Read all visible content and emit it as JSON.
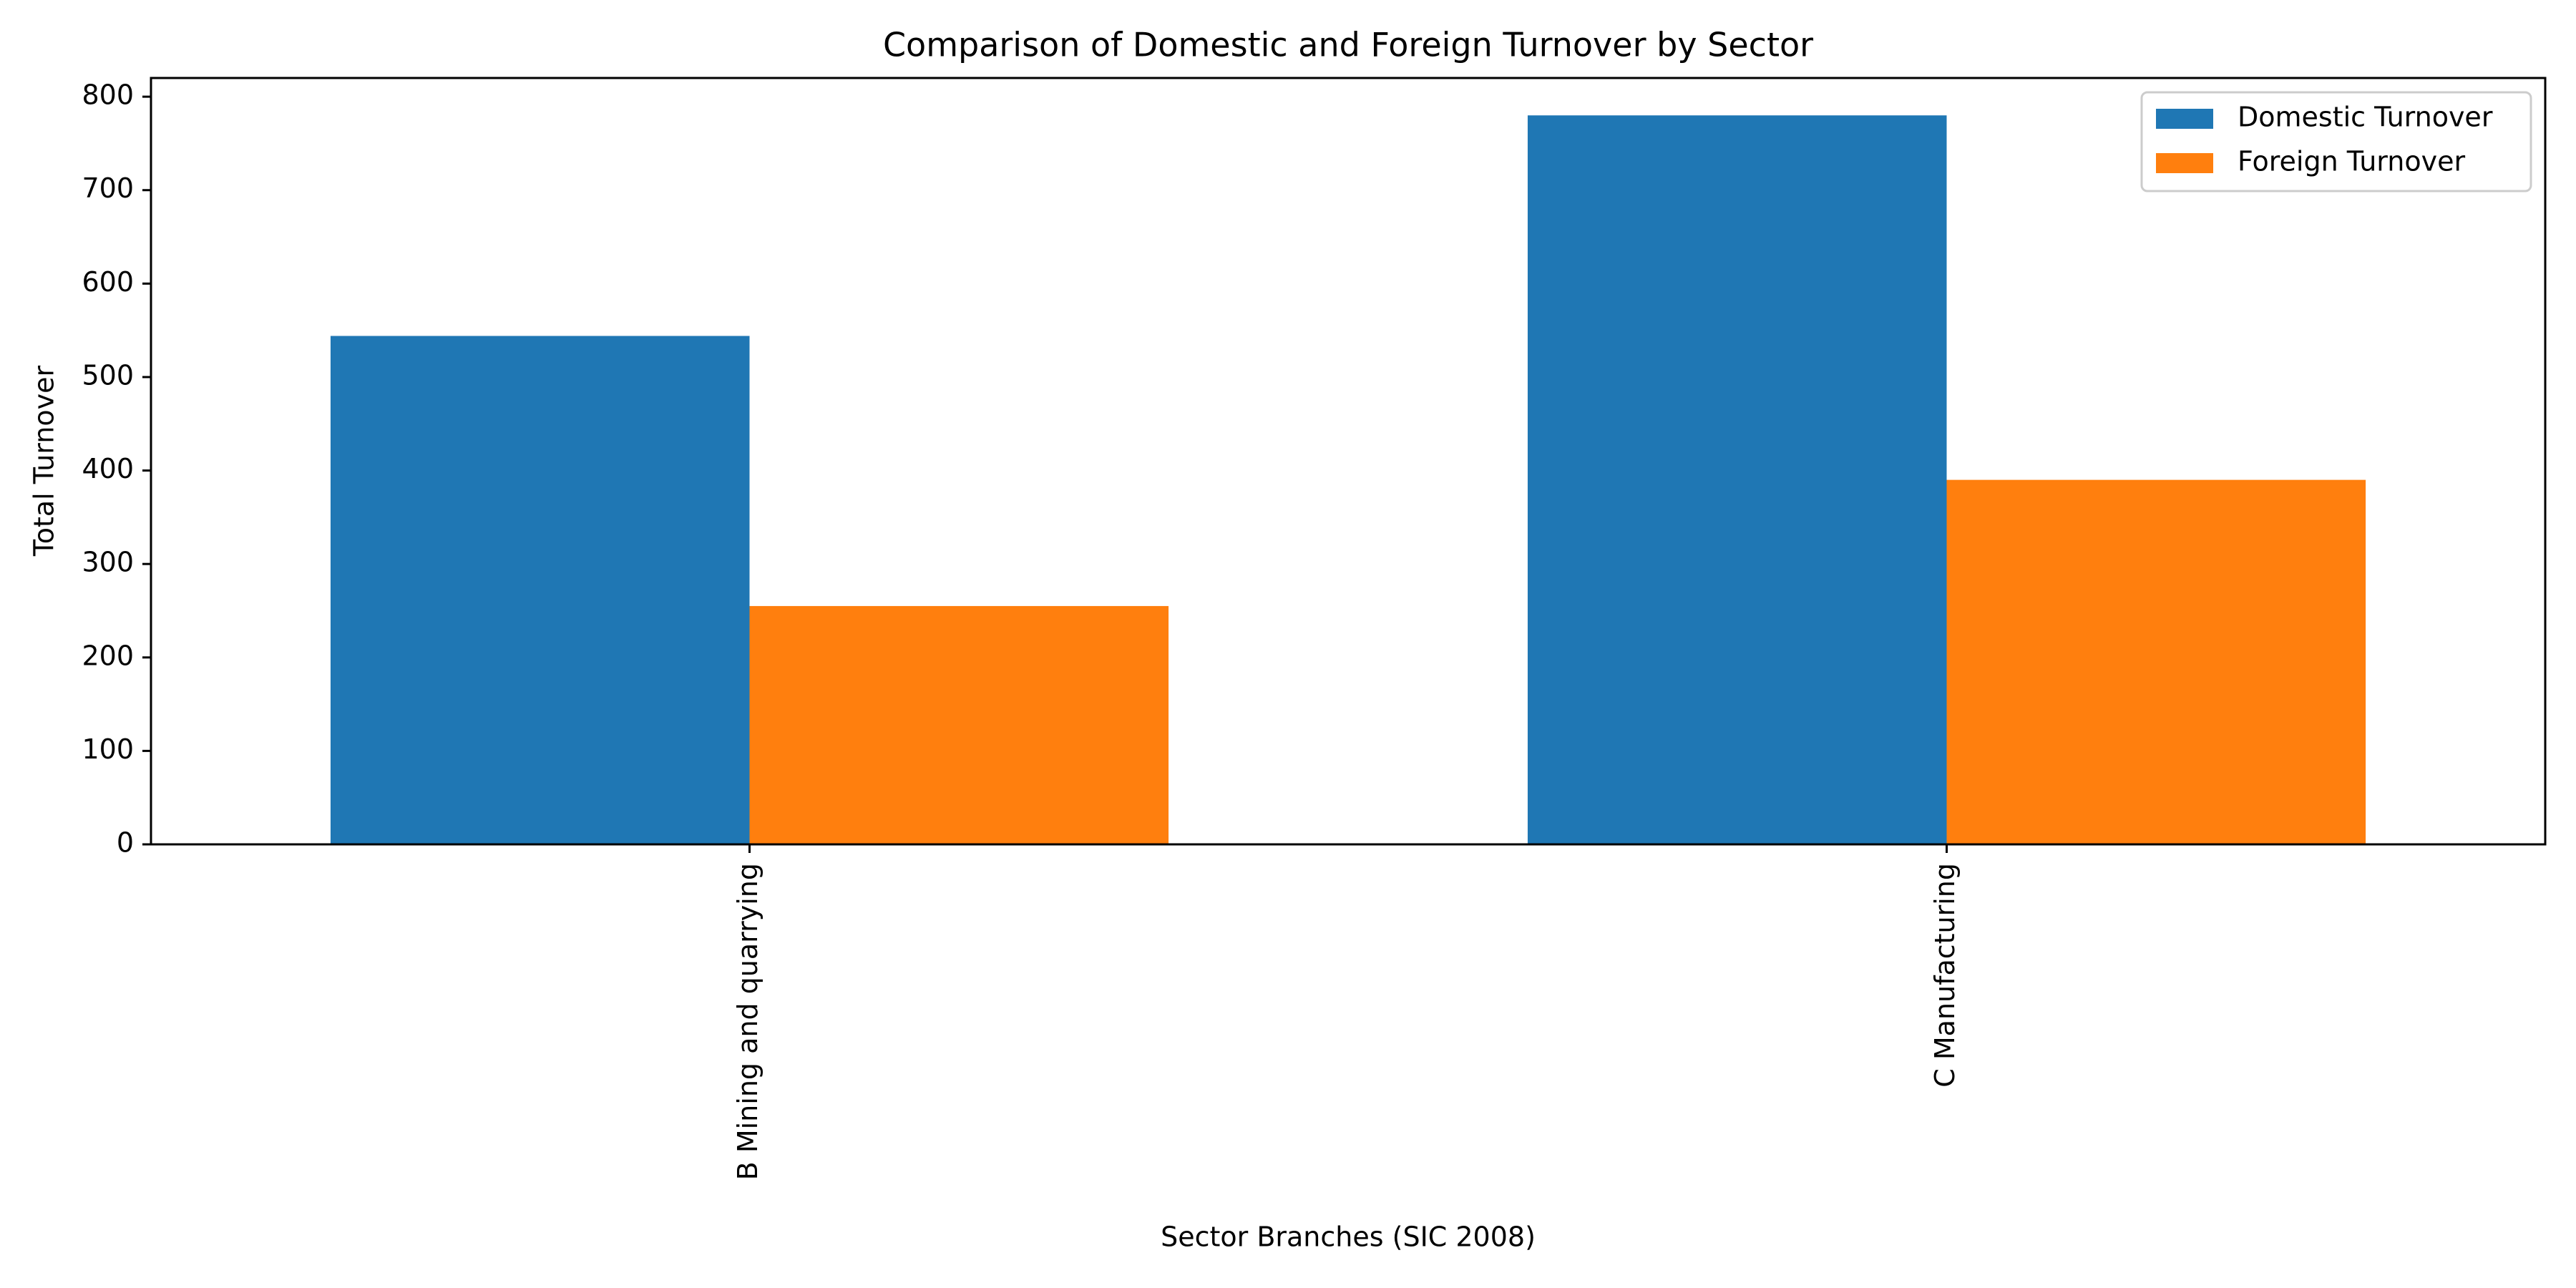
{
  "chart_data": {
    "type": "bar",
    "title": "Comparison of Domestic and Foreign Turnover by Sector",
    "xlabel": "Sector Branches (SIC 2008)",
    "ylabel": "Total Turnover",
    "categories": [
      "B Mining and quarrying",
      "C Manufacturing"
    ],
    "series": [
      {
        "name": "Domestic Turnover",
        "color": "#1f77b4",
        "values": [
          544,
          780
        ]
      },
      {
        "name": "Foreign Turnover",
        "color": "#ff7f0e",
        "values": [
          255,
          390
        ]
      }
    ],
    "ylim": [
      0,
      820
    ],
    "yticks": [
      0,
      100,
      200,
      300,
      400,
      500,
      600,
      700,
      800
    ],
    "grid": false,
    "legend_position": "top-right"
  }
}
